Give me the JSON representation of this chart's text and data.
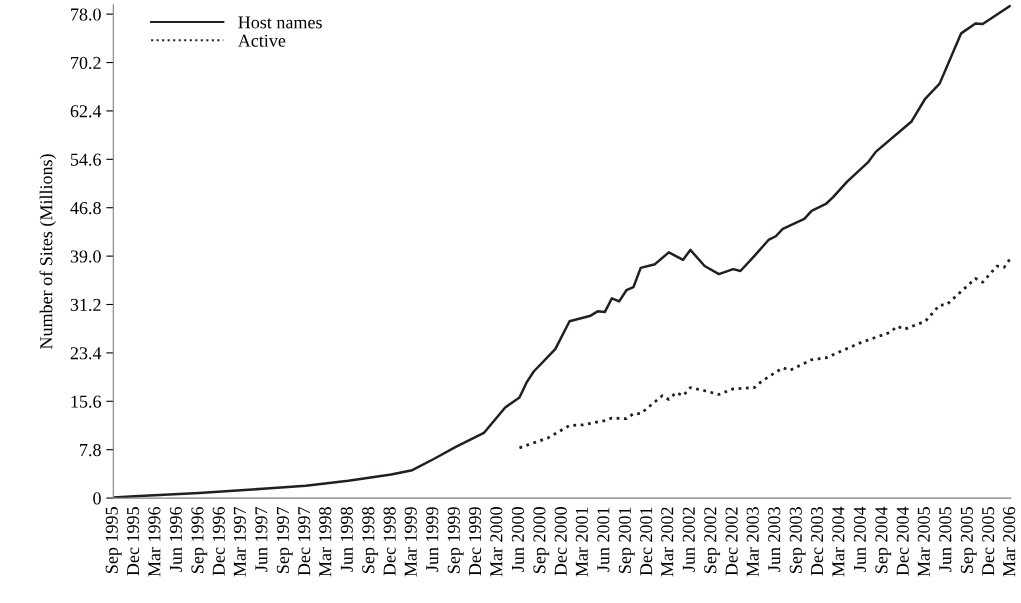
{
  "chart_data": {
    "type": "line",
    "ylabel": "Number of Sites (Millions)",
    "legend": "top left",
    "grid": false,
    "xlim": [
      "1995-09",
      "2006-03"
    ],
    "ylim": [
      0,
      79.5
    ],
    "yticks": [
      0,
      7.8,
      15.6,
      23.4,
      31.2,
      {
        "value": 39,
        "label": "39.0"
      },
      46.8,
      54.6,
      62.4,
      70.2,
      {
        "value": 78,
        "label": "78.0"
      }
    ],
    "xticks": [
      {
        "value": "1995-09",
        "label": "Sep 1995"
      },
      {
        "value": "1995-12",
        "label": "Dec 1995"
      },
      {
        "value": "1996-03",
        "label": "Mar 1996"
      },
      {
        "value": "1996-06",
        "label": "Jun 1996"
      },
      {
        "value": "1996-09",
        "label": "Sep 1996"
      },
      {
        "value": "1996-12",
        "label": "Dec 1996"
      },
      {
        "value": "1997-03",
        "label": "Mar 1997"
      },
      {
        "value": "1997-06",
        "label": "Jun 1997"
      },
      {
        "value": "1997-09",
        "label": "Sep 1997"
      },
      {
        "value": "1997-12",
        "label": "Dec 1997"
      },
      {
        "value": "1998-03",
        "label": "Mar 1998"
      },
      {
        "value": "1998-06",
        "label": "Jun 1998"
      },
      {
        "value": "1998-09",
        "label": "Sep 1998"
      },
      {
        "value": "1998-12",
        "label": "Dec 1998"
      },
      {
        "value": "1999-03",
        "label": "Mar 1999"
      },
      {
        "value": "1999-06",
        "label": "Jun 1999"
      },
      {
        "value": "1999-09",
        "label": "Sep 1999"
      },
      {
        "value": "1999-12",
        "label": "Dec 1999"
      },
      {
        "value": "2000-03",
        "label": "Mar 2000"
      },
      {
        "value": "2000-06",
        "label": "Jun 2000"
      },
      {
        "value": "2000-09",
        "label": "Sep 2000"
      },
      {
        "value": "2000-12",
        "label": "Dec 2000"
      },
      {
        "value": "2001-03",
        "label": "Mar 2001"
      },
      {
        "value": "2001-06",
        "label": "Jun 2001"
      },
      {
        "value": "2001-09",
        "label": "Sep 2001"
      },
      {
        "value": "2001-12",
        "label": "Dec 2001"
      },
      {
        "value": "2002-03",
        "label": "Mar 2002"
      },
      {
        "value": "2002-06",
        "label": "Jun 2002"
      },
      {
        "value": "2002-09",
        "label": "Sep 2002"
      },
      {
        "value": "2002-12",
        "label": "Dec 2002"
      },
      {
        "value": "2003-03",
        "label": "Mar 2003"
      },
      {
        "value": "2003-06",
        "label": "Jun 2003"
      },
      {
        "value": "2003-09",
        "label": "Sep 2003"
      },
      {
        "value": "2003-12",
        "label": "Dec 2003"
      },
      {
        "value": "2004-03",
        "label": "Mar 2004"
      },
      {
        "value": "2004-06",
        "label": "Jun 2004"
      },
      {
        "value": "2004-09",
        "label": "Sep 2004"
      },
      {
        "value": "2004-12",
        "label": "Dec 2004"
      },
      {
        "value": "2005-03",
        "label": "Mar 2005"
      },
      {
        "value": "2005-06",
        "label": "Jun 2005"
      },
      {
        "value": "2005-09",
        "label": "Sep 2005"
      },
      {
        "value": "2005-12",
        "label": "Dec 2005"
      },
      {
        "value": "2006-03",
        "label": "Mar 2006"
      }
    ],
    "series": [
      {
        "name": "Host names",
        "color": "#231f20",
        "line_style": "solid",
        "x": [
          "1995-09",
          "1995-12",
          "1996-09",
          "1997-06",
          "1997-12",
          "1998-06",
          "1998-12",
          "1999-03",
          "1999-06",
          "1999-09",
          "2000-01",
          "2000-04",
          "2000-06",
          "2000-07",
          "2000-08",
          "2000-11",
          "2001-01",
          "2001-04",
          "2001-05",
          "2001-06",
          "2001-07",
          "2001-08",
          "2001-09",
          "2001-10",
          "2001-11",
          "2002-01",
          "2002-03",
          "2002-05",
          "2002-06",
          "2002-08",
          "2002-10",
          "2002-12",
          "2003-01",
          "2003-03",
          "2003-05",
          "2003-06",
          "2003-07",
          "2003-10",
          "2003-11",
          "2004-01",
          "2004-02",
          "2004-03",
          "2004-04",
          "2004-07",
          "2004-08",
          "2005-01",
          "2005-03",
          "2005-05",
          "2005-08",
          "2005-10",
          "2005-11",
          "2006-03"
        ],
        "values": [
          0.1,
          0.3,
          0.8,
          1.5,
          2.0,
          2.8,
          3.8,
          4.5,
          6.3,
          8.2,
          10.5,
          14.6,
          16.2,
          18.6,
          20.4,
          24.0,
          28.5,
          29.4,
          30.1,
          30.0,
          32.2,
          31.7,
          33.5,
          34.0,
          37.1,
          37.7,
          39.6,
          38.4,
          40.0,
          37.4,
          36.1,
          36.9,
          36.6,
          39.0,
          41.6,
          42.2,
          43.4,
          45.0,
          46.3,
          47.4,
          48.5,
          49.7,
          51.0,
          54.2,
          55.8,
          60.7,
          64.4,
          66.8,
          74.9,
          76.5,
          76.4,
          79.4
        ]
      },
      {
        "name": "Active",
        "color": "#231f20",
        "line_style": "dotted",
        "x": [
          "2000-06",
          "2000-10",
          "2001-01",
          "2001-03",
          "2001-06",
          "2001-07",
          "2001-09",
          "2001-10",
          "2001-11",
          "2002-02",
          "2002-03",
          "2002-04",
          "2002-05",
          "2002-06",
          "2002-08",
          "2002-10",
          "2002-12",
          "2003-03",
          "2003-04",
          "2003-07",
          "2003-08",
          "2003-11",
          "2004-01",
          "2004-06",
          "2004-10",
          "2004-11",
          "2004-12",
          "2005-03",
          "2005-05",
          "2005-06",
          "2005-10",
          "2005-11",
          "2006-01",
          "2006-02",
          "2006-03"
        ],
        "values": [
          8.1,
          9.7,
          11.7,
          11.8,
          12.5,
          12.9,
          12.8,
          13.6,
          13.6,
          16.5,
          15.9,
          17.0,
          16.5,
          17.8,
          17.3,
          16.7,
          17.6,
          17.8,
          18.8,
          21.0,
          20.6,
          22.3,
          22.6,
          25.1,
          26.7,
          27.7,
          27.2,
          28.5,
          31.1,
          31.2,
          35.4,
          34.8,
          37.4,
          37.2,
          38.7
        ]
      }
    ]
  }
}
